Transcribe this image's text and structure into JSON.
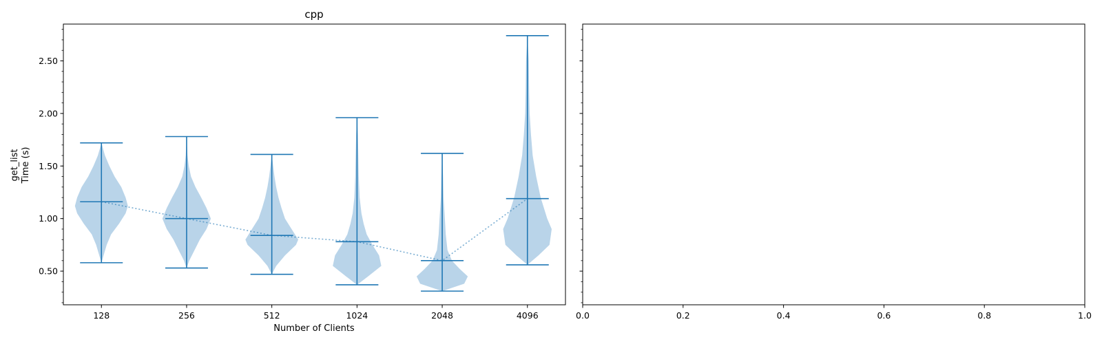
{
  "chart_data": [
    {
      "type": "violin",
      "title": "cpp",
      "xlabel": "Number of Clients",
      "ylabel_line1": "get_list",
      "ylabel_line2": "Time (s)",
      "categories": [
        "128",
        "256",
        "512",
        "1024",
        "2048",
        "4096"
      ],
      "ylim": [
        0.18,
        2.85
      ],
      "yticks": [
        0.5,
        1.0,
        1.5,
        2.0,
        2.5
      ],
      "ytick_labels": [
        "0.50",
        "1.00",
        "1.50",
        "2.00",
        "2.50"
      ],
      "yminor_step": 0.1,
      "means": [
        1.16,
        1.0,
        0.84,
        0.78,
        0.6,
        1.19
      ],
      "mins": [
        0.58,
        0.53,
        0.47,
        0.37,
        0.31,
        0.56
      ],
      "maxs": [
        1.72,
        1.78,
        1.61,
        1.96,
        1.62,
        2.74
      ],
      "density_halfwidth": [
        [
          [
            0.58,
            0.0
          ],
          [
            0.65,
            0.05
          ],
          [
            0.75,
            0.12
          ],
          [
            0.85,
            0.22
          ],
          [
            0.95,
            0.4
          ],
          [
            1.05,
            0.55
          ],
          [
            1.12,
            0.6
          ],
          [
            1.2,
            0.55
          ],
          [
            1.3,
            0.45
          ],
          [
            1.4,
            0.3
          ],
          [
            1.5,
            0.18
          ],
          [
            1.6,
            0.08
          ],
          [
            1.72,
            0.0
          ]
        ],
        [
          [
            0.53,
            0.0
          ],
          [
            0.6,
            0.06
          ],
          [
            0.7,
            0.18
          ],
          [
            0.8,
            0.3
          ],
          [
            0.9,
            0.45
          ],
          [
            1.0,
            0.55
          ],
          [
            1.1,
            0.45
          ],
          [
            1.2,
            0.33
          ],
          [
            1.3,
            0.2
          ],
          [
            1.4,
            0.1
          ],
          [
            1.5,
            0.05
          ],
          [
            1.6,
            0.02
          ],
          [
            1.78,
            0.0
          ]
        ],
        [
          [
            0.47,
            0.0
          ],
          [
            0.55,
            0.1
          ],
          [
            0.65,
            0.3
          ],
          [
            0.75,
            0.55
          ],
          [
            0.8,
            0.6
          ],
          [
            0.9,
            0.45
          ],
          [
            1.0,
            0.3
          ],
          [
            1.1,
            0.22
          ],
          [
            1.2,
            0.15
          ],
          [
            1.3,
            0.1
          ],
          [
            1.4,
            0.06
          ],
          [
            1.5,
            0.03
          ],
          [
            1.61,
            0.0
          ]
        ],
        [
          [
            0.37,
            0.0
          ],
          [
            0.45,
            0.25
          ],
          [
            0.55,
            0.55
          ],
          [
            0.65,
            0.5
          ],
          [
            0.75,
            0.35
          ],
          [
            0.85,
            0.22
          ],
          [
            0.95,
            0.15
          ],
          [
            1.05,
            0.1
          ],
          [
            1.2,
            0.06
          ],
          [
            1.4,
            0.04
          ],
          [
            1.6,
            0.03
          ],
          [
            1.8,
            0.02
          ],
          [
            1.96,
            0.0
          ]
        ],
        [
          [
            0.31,
            0.0
          ],
          [
            0.38,
            0.5
          ],
          [
            0.45,
            0.58
          ],
          [
            0.52,
            0.4
          ],
          [
            0.6,
            0.22
          ],
          [
            0.7,
            0.12
          ],
          [
            0.85,
            0.08
          ],
          [
            1.0,
            0.06
          ],
          [
            1.2,
            0.03
          ],
          [
            1.4,
            0.02
          ],
          [
            1.62,
            0.0
          ]
        ],
        [
          [
            0.56,
            0.0
          ],
          [
            0.65,
            0.25
          ],
          [
            0.75,
            0.5
          ],
          [
            0.9,
            0.55
          ],
          [
            1.0,
            0.45
          ],
          [
            1.2,
            0.3
          ],
          [
            1.4,
            0.2
          ],
          [
            1.6,
            0.12
          ],
          [
            1.8,
            0.08
          ],
          [
            2.0,
            0.05
          ],
          [
            2.2,
            0.04
          ],
          [
            2.5,
            0.03
          ],
          [
            2.74,
            0.0
          ]
        ]
      ],
      "fill_color": "#b9d4e9",
      "line_color": "#1f77b4"
    },
    {
      "type": "empty",
      "xlim": [
        0.0,
        1.0
      ],
      "xticks": [
        0.0,
        0.2,
        0.4,
        0.6,
        0.8,
        1.0
      ],
      "xtick_labels": [
        "0.0",
        "0.2",
        "0.4",
        "0.6",
        "0.8",
        "1.0"
      ]
    }
  ]
}
